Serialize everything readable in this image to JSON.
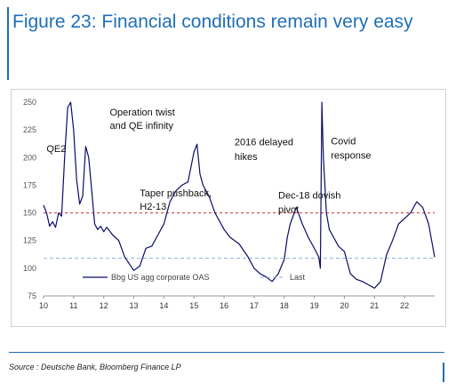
{
  "header": {
    "title": "Figure 23: Financial conditions remain very easy"
  },
  "footer": {
    "source": "Source : Deutsche Bank, Bloomberg Finance LP"
  },
  "chart_data": {
    "type": "line",
    "title": "",
    "xlabel": "",
    "ylabel": "",
    "xlim": [
      10,
      23
    ],
    "ylim": [
      75,
      250
    ],
    "xticks": [
      10,
      11,
      12,
      13,
      14,
      15,
      16,
      17,
      18,
      19,
      20,
      21,
      22
    ],
    "xtick_labels": [
      "10",
      "11",
      "12",
      "13",
      "14",
      "15",
      "16",
      "17",
      "18",
      "19",
      "20",
      "21",
      "22"
    ],
    "yticks": [
      75,
      100,
      125,
      150,
      175,
      200,
      225,
      250
    ],
    "ytick_labels": [
      "75",
      "100",
      "125",
      "150",
      "175",
      "200",
      "225",
      "250"
    ],
    "grid": false,
    "legend_position": "bottom-left",
    "colors": {
      "series": "#0c0c6a",
      "last": "#8fb0e0",
      "reference": "#d62a2a"
    },
    "series": [
      {
        "name": "Bbg US agg corporate OAS",
        "style": "solid",
        "x": [
          10.0,
          10.1,
          10.2,
          10.3,
          10.4,
          10.5,
          10.6,
          10.7,
          10.8,
          10.9,
          11.0,
          11.1,
          11.2,
          11.3,
          11.4,
          11.5,
          11.6,
          11.7,
          11.8,
          11.9,
          12.0,
          12.1,
          12.3,
          12.5,
          12.7,
          12.9,
          13.0,
          13.2,
          13.4,
          13.6,
          13.8,
          14.0,
          14.2,
          14.4,
          14.6,
          14.8,
          15.0,
          15.1,
          15.2,
          15.3,
          15.5,
          15.7,
          15.9,
          16.0,
          16.2,
          16.5,
          16.8,
          17.0,
          17.2,
          17.4,
          17.6,
          17.8,
          18.0,
          18.1,
          18.2,
          18.4,
          18.6,
          18.8,
          19.0,
          19.15,
          19.2,
          19.25,
          19.3,
          19.4,
          19.5,
          19.6,
          19.8,
          20.0,
          20.2,
          20.4,
          20.6,
          20.8,
          21.0,
          21.2,
          21.4,
          21.6,
          21.8,
          22.0,
          22.2,
          22.4,
          22.6,
          22.8,
          22.9,
          23.0
        ],
        "y": [
          157,
          150,
          138,
          142,
          137,
          150,
          147,
          200,
          245,
          250,
          225,
          180,
          158,
          165,
          210,
          200,
          170,
          140,
          135,
          138,
          133,
          137,
          130,
          125,
          110,
          102,
          98,
          102,
          118,
          120,
          130,
          140,
          160,
          170,
          175,
          178,
          205,
          212,
          185,
          175,
          165,
          150,
          140,
          135,
          128,
          122,
          110,
          100,
          95,
          92,
          88,
          95,
          108,
          128,
          140,
          155,
          140,
          128,
          118,
          110,
          100,
          250,
          200,
          150,
          135,
          130,
          120,
          115,
          95,
          90,
          88,
          85,
          82,
          88,
          112,
          125,
          140,
          145,
          150,
          160,
          155,
          140,
          125,
          110
        ]
      },
      {
        "name": "Last",
        "style": "dashed",
        "x": [
          10,
          23
        ],
        "y": [
          109,
          109
        ]
      },
      {
        "name": "",
        "style": "dashed",
        "x": [
          10,
          23
        ],
        "y": [
          150,
          150
        ]
      }
    ],
    "annotations": [
      {
        "text": "QE2",
        "x": 10.1,
        "y": 205
      },
      {
        "text": "Operation twist",
        "x": 12.2,
        "y": 238
      },
      {
        "text": "and QE infinity",
        "x": 12.2,
        "y": 226
      },
      {
        "text": "Taper pushback,",
        "x": 13.2,
        "y": 165
      },
      {
        "text": "H2-13",
        "x": 13.2,
        "y": 153
      },
      {
        "text": "2016 delayed",
        "x": 16.35,
        "y": 211
      },
      {
        "text": "hikes",
        "x": 16.35,
        "y": 198
      },
      {
        "text": "Dec-18 dovish",
        "x": 17.8,
        "y": 163
      },
      {
        "text": "pivot",
        "x": 17.8,
        "y": 150
      },
      {
        "text": "Covid",
        "x": 19.55,
        "y": 212
      },
      {
        "text": "response",
        "x": 19.55,
        "y": 199
      }
    ]
  }
}
